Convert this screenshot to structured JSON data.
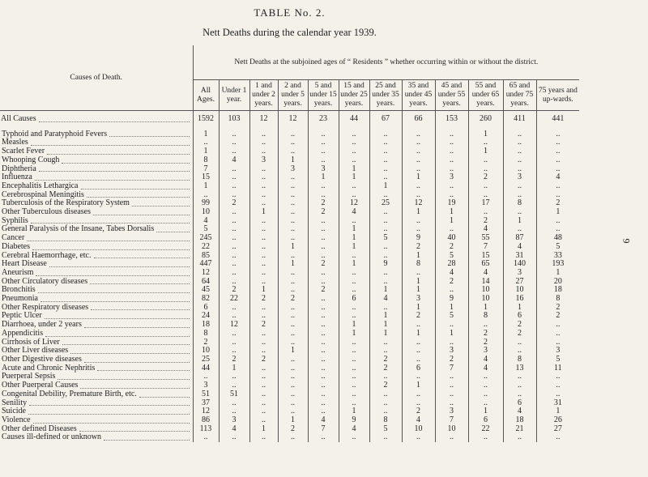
{
  "title": "TABLE No. 2.",
  "subtitle": "Nett Deaths during the calendar year 1939.",
  "page_number": "9",
  "table": {
    "header": {
      "cause": "Causes of Death.",
      "group": "Nett Deaths at the subjoined ages of “ Residents ” whether occurring within or without the district.",
      "columns": [
        "All Ages.",
        "Under 1 year.",
        "1 and under 2 years.",
        "2 and under 5 years.",
        "5 and under 15 years.",
        "15 and under 25 years.",
        "25 and under 35 years.",
        "35 and under 45 years.",
        "45 and under 55 years.",
        "55 and under 65 years.",
        "65 and under 75 years.",
        "75 years and up-wards."
      ]
    },
    "total": {
      "cause": "All Causes",
      "values": [
        1592,
        103,
        12,
        12,
        23,
        44,
        67,
        66,
        153,
        260,
        411,
        441
      ]
    },
    "rows": [
      {
        "cause": "Typhoid and Paratyphoid Fevers",
        "values": [
          1,
          "..",
          "..",
          "..",
          "..",
          "..",
          "..",
          "..",
          "..",
          1,
          "..",
          ".."
        ]
      },
      {
        "cause": "Measles",
        "values": [
          "..",
          "..",
          "..",
          "..",
          "..",
          "..",
          "..",
          "..",
          "..",
          "..",
          "..",
          ".."
        ]
      },
      {
        "cause": "Scarlet Fever",
        "values": [
          1,
          "..",
          "..",
          "..",
          "..",
          "..",
          "..",
          "..",
          "..",
          1,
          "..",
          ".."
        ]
      },
      {
        "cause": "Whooping Cough",
        "values": [
          8,
          4,
          3,
          1,
          "..",
          "..",
          "..",
          "..",
          "..",
          "..",
          "..",
          ".."
        ]
      },
      {
        "cause": "Diphtheria",
        "values": [
          7,
          "..",
          "..",
          3,
          3,
          1,
          "..",
          "..",
          "..",
          "..",
          "..",
          ".."
        ]
      },
      {
        "cause": "Influenza",
        "values": [
          15,
          "..",
          "..",
          "..",
          1,
          1,
          "..",
          1,
          3,
          2,
          3,
          4
        ]
      },
      {
        "cause": "Encephalitis Lethargica",
        "values": [
          1,
          "..",
          "..",
          "..",
          "..",
          "..",
          1,
          "..",
          "..",
          "..",
          "..",
          ".."
        ]
      },
      {
        "cause": "Cerebrospinal Meningitis",
        "values": [
          "..",
          "..",
          "..",
          "..",
          "..",
          "..",
          "..",
          "..",
          "..",
          "..",
          "..",
          ".."
        ]
      },
      {
        "cause": "Tuberculosis of the Respiratory System",
        "values": [
          99,
          2,
          "..",
          "..",
          2,
          12,
          25,
          12,
          19,
          17,
          8,
          2
        ]
      },
      {
        "cause": "Other Tuberculous diseases",
        "values": [
          10,
          "..",
          1,
          "..",
          2,
          4,
          "..",
          1,
          1,
          "..",
          "..",
          1
        ]
      },
      {
        "cause": "Syphilis",
        "values": [
          4,
          "..",
          "..",
          "..",
          "..",
          "..",
          "..",
          "..",
          1,
          2,
          1,
          ".."
        ]
      },
      {
        "cause": "General Paralysis of the Insane, Tabes Dorsalis",
        "values": [
          5,
          "..",
          "..",
          "..",
          "..",
          1,
          "..",
          "..",
          "..",
          4,
          "..",
          ".."
        ]
      },
      {
        "cause": "Cancer",
        "values": [
          245,
          "..",
          "..",
          "..",
          "..",
          1,
          5,
          9,
          40,
          55,
          87,
          48
        ]
      },
      {
        "cause": "Diabetes",
        "values": [
          22,
          "..",
          "..",
          1,
          "..",
          1,
          "..",
          2,
          2,
          7,
          4,
          5
        ]
      },
      {
        "cause": "Cerebral Haemorrhage, etc.",
        "values": [
          85,
          "..",
          "..",
          "..",
          "..",
          "..",
          "..",
          1,
          5,
          15,
          31,
          33
        ]
      },
      {
        "cause": "Heart Disease",
        "values": [
          447,
          "..",
          "..",
          1,
          2,
          1,
          9,
          8,
          28,
          65,
          140,
          193
        ]
      },
      {
        "cause": "Aneurism",
        "values": [
          12,
          "..",
          "..",
          "..",
          "..",
          "..",
          "..",
          "..",
          4,
          4,
          3,
          1
        ]
      },
      {
        "cause": "Other Circulatory diseases",
        "values": [
          64,
          "..",
          "..",
          "..",
          "..",
          "..",
          "..",
          1,
          2,
          14,
          27,
          20
        ]
      },
      {
        "cause": "Bronchitis",
        "values": [
          45,
          2,
          1,
          "..",
          2,
          "..",
          1,
          1,
          "..",
          10,
          10,
          18
        ]
      },
      {
        "cause": "Pneumonia",
        "values": [
          82,
          22,
          2,
          2,
          "..",
          6,
          4,
          3,
          9,
          10,
          16,
          8
        ]
      },
      {
        "cause": "Other Respiratory diseases",
        "values": [
          6,
          "..",
          "..",
          "..",
          "..",
          "..",
          "..",
          1,
          1,
          1,
          1,
          2
        ]
      },
      {
        "cause": "Peptic Ulcer",
        "values": [
          24,
          "..",
          "..",
          "..",
          "..",
          "..",
          1,
          2,
          5,
          8,
          6,
          2
        ]
      },
      {
        "cause": "Diarrhoea, under 2 years",
        "values": [
          18,
          12,
          2,
          "..",
          "..",
          1,
          1,
          "..",
          "..",
          "..",
          2,
          ".."
        ]
      },
      {
        "cause": "Appendicitis",
        "values": [
          8,
          "..",
          "..",
          "..",
          "..",
          1,
          1,
          1,
          1,
          2,
          2,
          ".."
        ]
      },
      {
        "cause": "Cirrhosis of Liver",
        "values": [
          2,
          "..",
          "..",
          "..",
          "..",
          "..",
          "..",
          "..",
          "..",
          2,
          "..",
          ".."
        ]
      },
      {
        "cause": "Other Liver diseases",
        "values": [
          10,
          "..",
          "..",
          1,
          "..",
          "..",
          "..",
          "..",
          3,
          3,
          "..",
          3
        ]
      },
      {
        "cause": "Other Digestive diseases",
        "values": [
          25,
          2,
          2,
          "..",
          "..",
          "..",
          2,
          "..",
          2,
          4,
          8,
          5
        ]
      },
      {
        "cause": "Acute and Chronic Nephritis",
        "values": [
          44,
          1,
          "..",
          "..",
          "..",
          "..",
          2,
          6,
          7,
          4,
          13,
          11
        ]
      },
      {
        "cause": "Puerperal Sepsis",
        "values": [
          "..",
          "..",
          "..",
          "..",
          "..",
          "..",
          "..",
          "..",
          "..",
          "..",
          "..",
          ".."
        ]
      },
      {
        "cause": "Other Puerperal Causes",
        "values": [
          3,
          "..",
          "..",
          "..",
          "..",
          "..",
          2,
          1,
          "..",
          "..",
          "..",
          ".."
        ]
      },
      {
        "cause": "Congenital Debility, Premature Birth, etc.",
        "values": [
          51,
          51,
          "..",
          "..",
          "..",
          "..",
          "..",
          "..",
          "..",
          "..",
          "..",
          ".."
        ]
      },
      {
        "cause": "Senility",
        "values": [
          37,
          "..",
          "..",
          "..",
          "..",
          "..",
          "..",
          "..",
          "..",
          "..",
          6,
          31
        ]
      },
      {
        "cause": "Suicide",
        "values": [
          12,
          "..",
          "..",
          "..",
          "..",
          1,
          "..",
          2,
          3,
          1,
          4,
          1
        ]
      },
      {
        "cause": "Violence",
        "values": [
          86,
          3,
          "..",
          1,
          4,
          9,
          8,
          4,
          7,
          6,
          18,
          26
        ]
      },
      {
        "cause": "Other defined Diseases",
        "values": [
          113,
          4,
          1,
          2,
          7,
          4,
          5,
          10,
          10,
          22,
          21,
          27
        ]
      },
      {
        "cause": "Causes ill-defined or unknown",
        "values": [
          "..",
          "..",
          "..",
          "..",
          "..",
          "..",
          "..",
          "..",
          "..",
          "..",
          "..",
          ".."
        ]
      }
    ]
  }
}
